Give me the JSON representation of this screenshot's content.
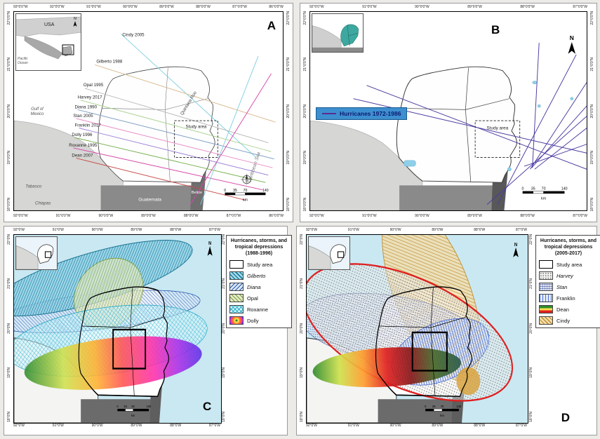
{
  "colors": {
    "sea_ab": "#ffffff",
    "sea_cd": "#c9e8f2",
    "land_light": "#d6d6d4",
    "land_dark": "#8a8a8a",
    "legend_b_bg": "#3d8fd0",
    "track_b": "#4b3aa0",
    "harvey_outline": "#e02020"
  },
  "panels": {
    "a": {
      "letter": "A",
      "coords": {
        "top": [
          "93°0'0\"W",
          "92°0'0\"W",
          "91°0'0\"W",
          "90°0'0\"W",
          "89°0'0\"W",
          "88°0'0\"W",
          "87°0'0\"W",
          "86°0'0\"W"
        ],
        "bottom": [
          "92°0'0\"W",
          "91°0'0\"W",
          "90°0'0\"W",
          "89°0'0\"W",
          "88°0'0\"W",
          "87°0'0\"W",
          "86°0'0\"W"
        ],
        "left": [
          "22°0'0\"N",
          "21°0'0\"N",
          "20°0'0\"N",
          "19°0'0\"N",
          "18°0'0\"N"
        ],
        "right": [
          "22°0'0\"N",
          "21°0'0\"N",
          "20°0'0\"N",
          "19°0'0\"N",
          "18°0'0\"N"
        ]
      },
      "inset": {
        "country": "USA",
        "ocean": "Pacific Ocean",
        "north": "N"
      },
      "tracks": [
        {
          "name": "Cindy 2005",
          "color": "#7fd0e0"
        },
        {
          "name": "Gilberto 1988",
          "color": "#d8b98e"
        },
        {
          "name": "Opal 1995",
          "color": "#b8b8b8"
        },
        {
          "name": "Harvey 2017",
          "color": "#a9d18e"
        },
        {
          "name": "Diana 1990",
          "color": "#7f9ec4"
        },
        {
          "name": "Stan 2005",
          "color": "#e88ac8"
        },
        {
          "name": "Franklin 2017",
          "color": "#9e7fd4"
        },
        {
          "name": "Dolly 1996",
          "color": "#6fae46"
        },
        {
          "name": "Roxanne 1995",
          "color": "#d646a8"
        },
        {
          "name": "Dean 2007",
          "color": "#c84b4b"
        }
      ],
      "labels": {
        "gulf": "Gulf of Mexico",
        "tabasco": "Tabasco",
        "chiapas": "Chiapas",
        "guatemala": "Guatemala",
        "belize": "Belize",
        "quintana_roo": "Quintana Roo",
        "caribbean": "Caribbean Sea",
        "study_area": "Study area"
      },
      "scale": {
        "ticks": [
          "0",
          "35",
          "70",
          "140"
        ],
        "unit": "km"
      }
    },
    "b": {
      "letter": "B",
      "north": "N",
      "coords": {
        "top": [
          "92°0'0\"W",
          "91°0'0\"W",
          "90°0'0\"W",
          "89°0'0\"W",
          "88°0'0\"W",
          "87°0'0\"W"
        ],
        "bottom": [
          "92°0'0\"W",
          "91°0'0\"W",
          "90°0'0\"W",
          "89°0'0\"W",
          "88°0'0\"W",
          "87°0'0\"W"
        ],
        "left": [
          "22°0'0\"N",
          "21°0'0\"N",
          "20°0'0\"N",
          "19°0'0\"N",
          "18°0'0\"N"
        ],
        "right": [
          "22°0'0\"N",
          "21°0'0\"N",
          "20°0'0\"N",
          "19°0'0\"N",
          "18°0'0\"N"
        ]
      },
      "legend": {
        "label": "Hurricanes 1972-1986"
      },
      "labels": {
        "study_area": "Study area"
      },
      "scale": {
        "ticks": [
          "0",
          "35",
          "70",
          "140"
        ],
        "unit": "km"
      }
    },
    "c": {
      "letter": "C",
      "north": "N",
      "coords": {
        "top": [
          "92°0'W",
          "91°0'W",
          "90°0'W",
          "89°0'W",
          "88°0'W",
          "87°0'W"
        ],
        "bottom": [
          "92°0'W",
          "91°0'W",
          "90°0'W",
          "89°0'W",
          "88°0'W",
          "87°0'W"
        ],
        "left": [
          "22°0'N",
          "21°0'N",
          "20°0'N",
          "19°0'N",
          "18°0'N"
        ],
        "right": [
          "22°0'N",
          "21°0'N",
          "20°0'N",
          "19°0'N",
          "18°0'N"
        ]
      },
      "legend": {
        "title": "Hurricanes, storms, and tropical depressions (1988-1996)",
        "items": [
          {
            "label": "Study area"
          },
          {
            "label": "Gilberto"
          },
          {
            "label": "Diana"
          },
          {
            "label": "Opal"
          },
          {
            "label": "Roxanne"
          },
          {
            "label": "Dolly"
          }
        ]
      },
      "scale": {
        "ticks": [
          "0",
          "25",
          "50",
          "100"
        ],
        "unit": "km"
      }
    },
    "d": {
      "letter": "D",
      "north": "N",
      "coords": {
        "top": [
          "92°0'W",
          "91°0'W",
          "90°0'W",
          "89°0'W",
          "88°0'W",
          "87°0'W"
        ],
        "bottom": [
          "92°0'W",
          "91°0'W",
          "90°0'W",
          "89°0'W",
          "88°0'W",
          "87°0'W"
        ],
        "left": [
          "22°0'N",
          "21°0'N",
          "20°0'N",
          "19°0'N",
          "18°0'N"
        ],
        "right": [
          "22°0'N",
          "21°0'N",
          "20°0'N",
          "19°0'N",
          "18°0'N"
        ]
      },
      "legend": {
        "title": "Hurricanes, storms, and tropical depressions (2005-2017)",
        "items": [
          {
            "label": "Study area"
          },
          {
            "label": "Harvey"
          },
          {
            "label": "Stan"
          },
          {
            "label": "Franklin"
          },
          {
            "label": "Dean"
          },
          {
            "label": "Cindy"
          }
        ]
      },
      "scale": {
        "ticks": [
          "0",
          "35",
          "70",
          "140"
        ],
        "unit": "km"
      }
    }
  }
}
